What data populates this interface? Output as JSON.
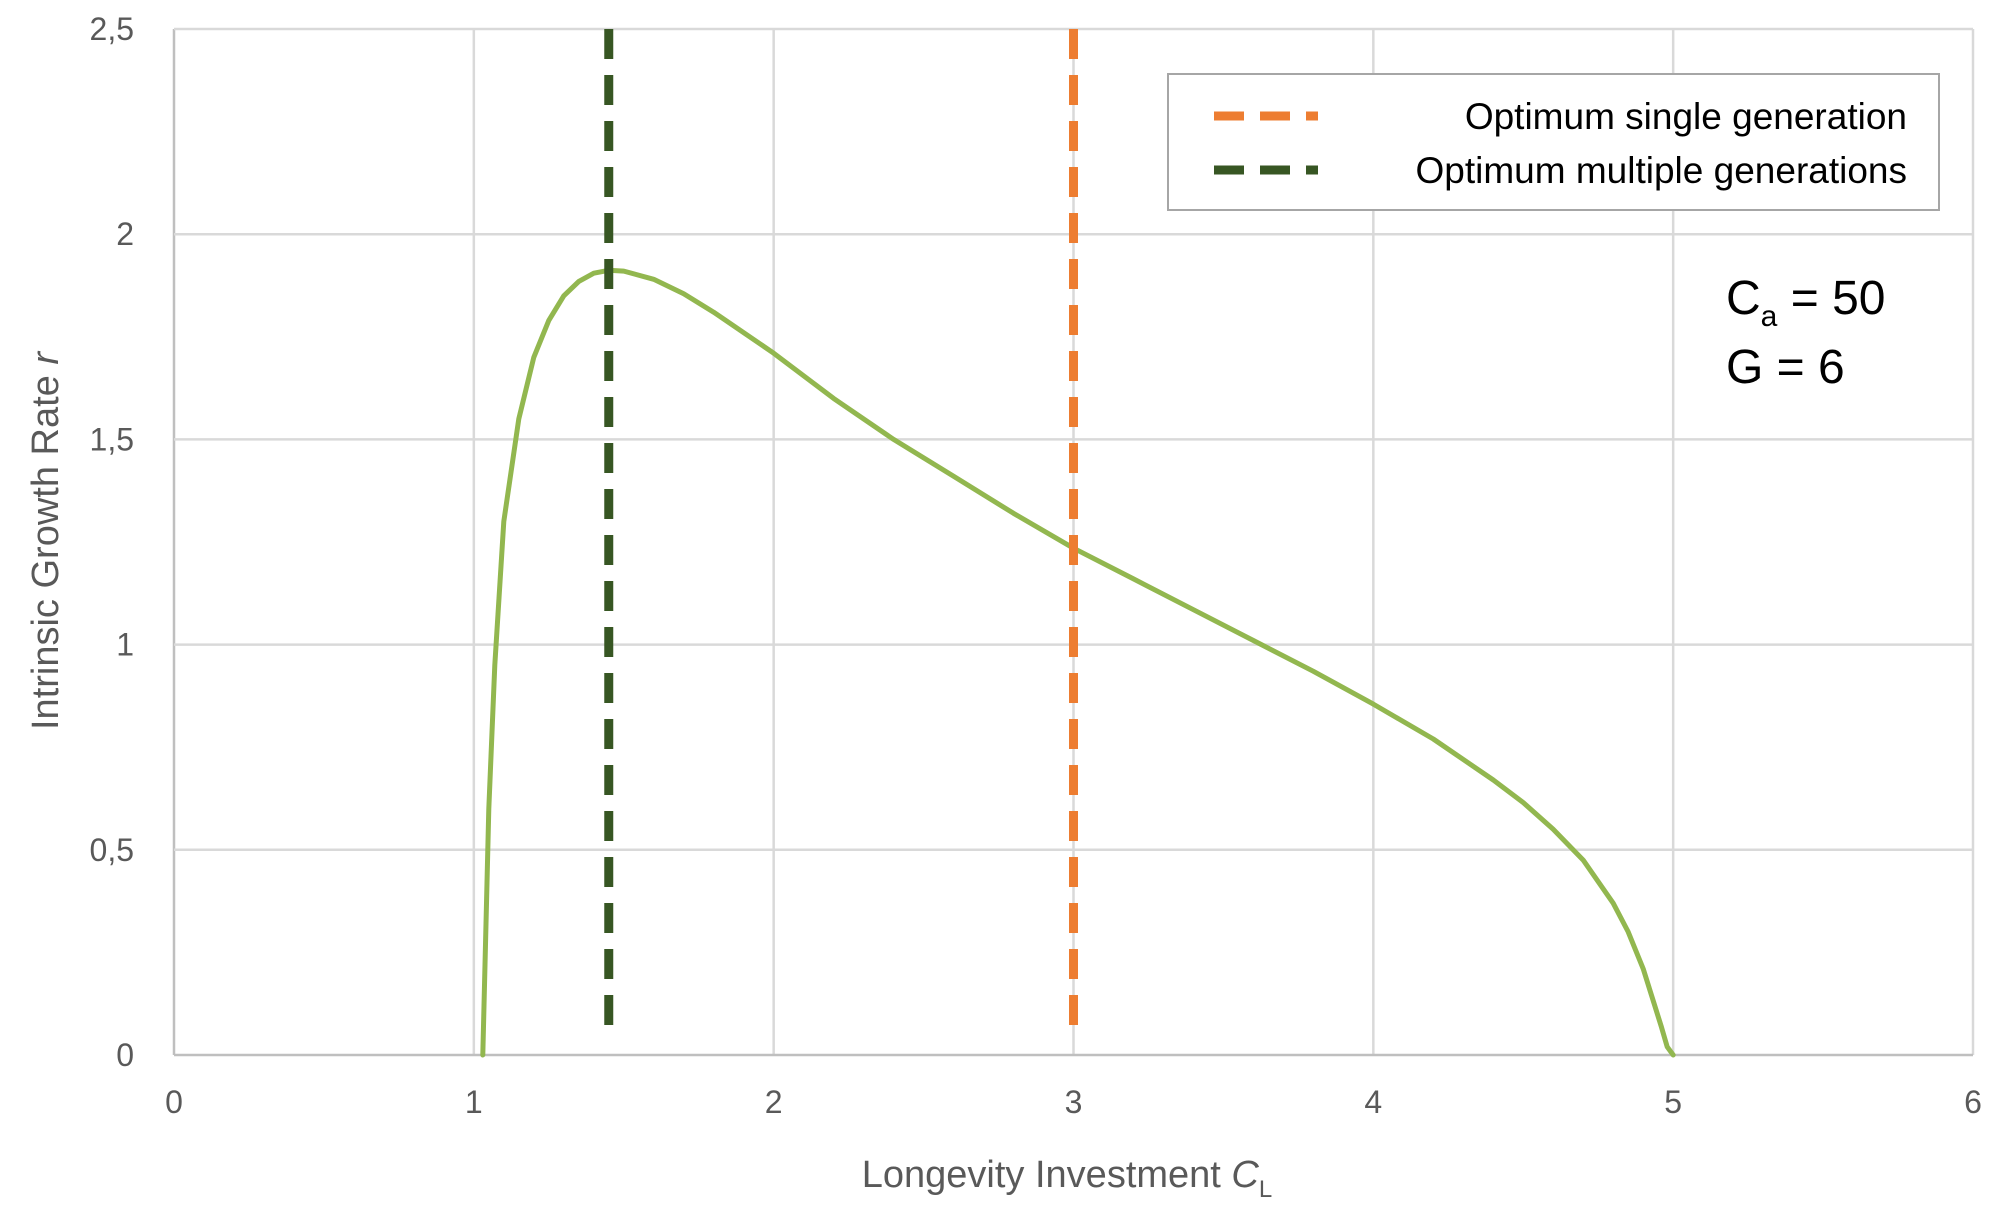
{
  "chart_data": {
    "type": "line",
    "title": "",
    "xlabel": "Longevity Investment",
    "xlabel_var": "C",
    "xlabel_sub": "L",
    "ylabel": "Intrinsic Growth Rate",
    "ylabel_var": "r",
    "xlim": [
      0,
      6
    ],
    "ylim": [
      0,
      2.5
    ],
    "x_ticks": [
      0,
      1,
      2,
      3,
      4,
      5,
      6
    ],
    "y_ticks": [
      0,
      0.5,
      1,
      1.5,
      2,
      2.5
    ],
    "x_tick_labels": [
      "0",
      "1",
      "2",
      "3",
      "4",
      "5",
      "6"
    ],
    "y_tick_labels": [
      "0",
      "0,5",
      "1",
      "1,5",
      "2",
      "2,5"
    ],
    "grid": true,
    "legend_position": "top-right",
    "series": [
      {
        "kind": "curve",
        "color": "#92b74f",
        "x": [
          1.03,
          1.04,
          1.05,
          1.07,
          1.1,
          1.15,
          1.2,
          1.25,
          1.3,
          1.35,
          1.4,
          1.45,
          1.5,
          1.6,
          1.7,
          1.8,
          1.9,
          2.0,
          2.2,
          2.4,
          2.6,
          2.8,
          3.0,
          3.2,
          3.4,
          3.6,
          3.8,
          4.0,
          4.2,
          4.4,
          4.5,
          4.6,
          4.7,
          4.8,
          4.85,
          4.9,
          4.93,
          4.96,
          4.98,
          5.0
        ],
        "y": [
          0.0,
          0.3,
          0.6,
          0.95,
          1.3,
          1.55,
          1.7,
          1.79,
          1.85,
          1.885,
          1.905,
          1.912,
          1.91,
          1.89,
          1.855,
          1.81,
          1.76,
          1.71,
          1.6,
          1.5,
          1.41,
          1.32,
          1.235,
          1.16,
          1.085,
          1.01,
          0.935,
          0.855,
          0.77,
          0.67,
          0.615,
          0.55,
          0.475,
          0.37,
          0.3,
          0.21,
          0.14,
          0.07,
          0.02,
          0.0
        ]
      },
      {
        "kind": "vline",
        "name": "Optimum single generation",
        "color": "#ed7d31",
        "x": 3.0,
        "y_range": [
          0.07,
          2.5
        ]
      },
      {
        "kind": "vline",
        "name": "Optimum multiple generations",
        "color": "#375623",
        "x": 1.45,
        "y_range": [
          0.07,
          2.5
        ]
      }
    ],
    "annotations": [
      {
        "id": "ca",
        "prefix": "C",
        "sub": "a",
        "suffix": " = 50"
      },
      {
        "id": "g",
        "text": "G = 6"
      }
    ]
  }
}
